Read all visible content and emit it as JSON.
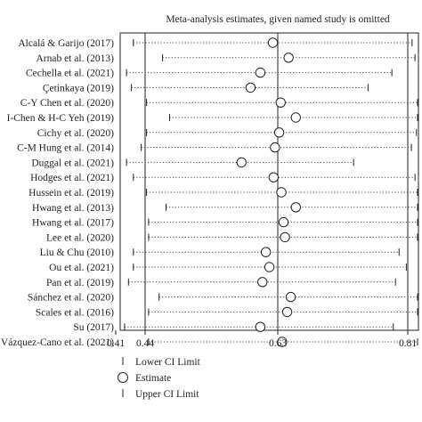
{
  "chart_data": {
    "type": "forest",
    "title": "Meta-analysis estimates, given named study is omitted",
    "x_ticks": [
      {
        "value": 0.41,
        "label": "0.41"
      },
      {
        "value": 0.44,
        "label": "0.44"
      },
      {
        "value": 0.63,
        "label": "0.63"
      },
      {
        "value": 0.81,
        "label": "0.81"
      }
    ],
    "xlim": [
      0.41,
      0.81
    ],
    "studies": [
      {
        "name": "Alcalá & Garijo (2017)",
        "lower": 0.428,
        "estimate": 0.623,
        "upper": 0.816
      },
      {
        "name": "Arnab et al. (2013)",
        "lower": 0.465,
        "estimate": 0.645,
        "upper": 0.82
      },
      {
        "name": "Cechella et al. (2021)",
        "lower": 0.421,
        "estimate": 0.605,
        "upper": 0.788
      },
      {
        "name": "Çetinkaya (2019)",
        "lower": 0.426,
        "estimate": 0.591,
        "upper": 0.755
      },
      {
        "name": "C-Y Chen et al. (2020)",
        "lower": 0.442,
        "estimate": 0.634,
        "upper": 0.825
      },
      {
        "name": "I-Chen & H-C Yeh (2019)",
        "lower": 0.475,
        "estimate": 0.655,
        "upper": 0.835
      },
      {
        "name": "Cichy et al. (2020)",
        "lower": 0.442,
        "estimate": 0.632,
        "upper": 0.822
      },
      {
        "name": "C-M Hung et al. (2014)",
        "lower": 0.436,
        "estimate": 0.626,
        "upper": 0.815
      },
      {
        "name": "Duggal et al. (2021)",
        "lower": 0.421,
        "estimate": 0.578,
        "upper": 0.735
      },
      {
        "name": "Hodges et al. (2021)",
        "lower": 0.428,
        "estimate": 0.624,
        "upper": 0.82
      },
      {
        "name": "Hussein et al. (2019)",
        "lower": 0.442,
        "estimate": 0.635,
        "upper": 0.828
      },
      {
        "name": "Hwang et al. (2013)",
        "lower": 0.47,
        "estimate": 0.655,
        "upper": 0.84
      },
      {
        "name": "Hwang et al. (2017)",
        "lower": 0.445,
        "estimate": 0.638,
        "upper": 0.832
      },
      {
        "name": "Lee et al. (2020)",
        "lower": 0.445,
        "estimate": 0.64,
        "upper": 0.836
      },
      {
        "name": "Liu & Chu (2010)",
        "lower": 0.428,
        "estimate": 0.613,
        "upper": 0.798
      },
      {
        "name": "Ou et al. (2021)",
        "lower": 0.428,
        "estimate": 0.618,
        "upper": 0.808
      },
      {
        "name": "Pan et al. (2019)",
        "lower": 0.423,
        "estimate": 0.608,
        "upper": 0.793
      },
      {
        "name": "Sánchez et al. (2020)",
        "lower": 0.46,
        "estimate": 0.648,
        "upper": 0.836
      },
      {
        "name": "Scales et al. (2016)",
        "lower": 0.445,
        "estimate": 0.643,
        "upper": 0.84
      },
      {
        "name": "Su (2017)",
        "lower": 0.419,
        "estimate": 0.605,
        "upper": 0.79
      },
      {
        "name": "Vázquez-Cano et al. (2021)",
        "lower": 0.445,
        "estimate": 0.636,
        "upper": 0.828
      }
    ],
    "legend": {
      "position": "bottom-center",
      "items": [
        "Lower CI Limit",
        "Estimate",
        "Upper CI Limit"
      ]
    }
  }
}
